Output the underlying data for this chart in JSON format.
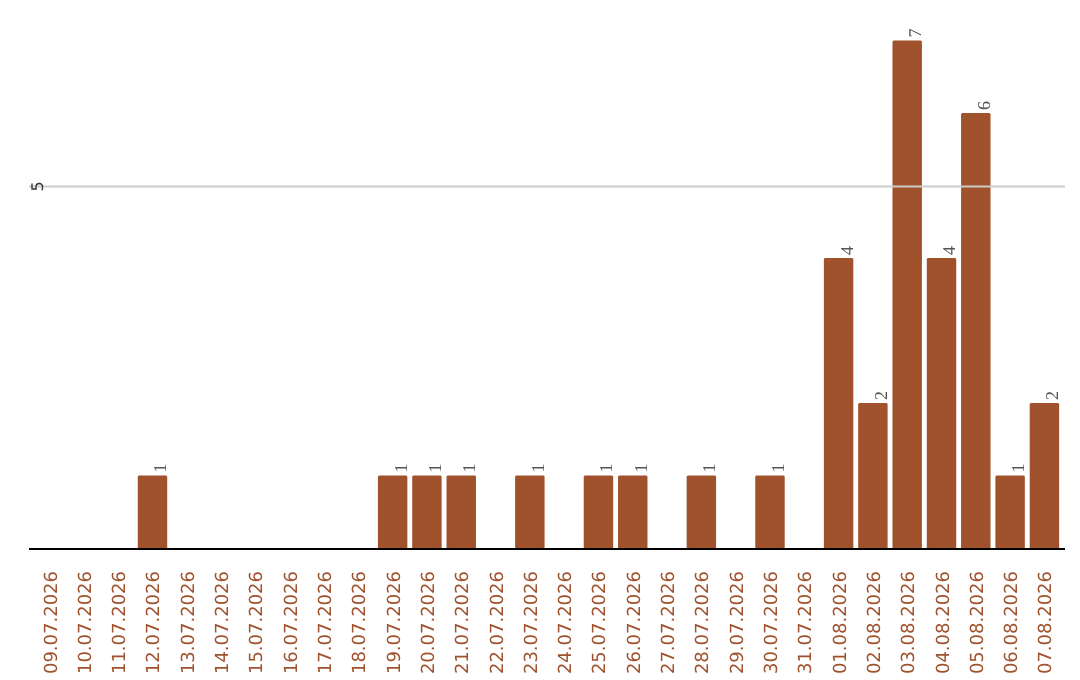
{
  "chart_data": {
    "type": "bar",
    "categories": [
      "09.07.2026",
      "10.07.2026",
      "11.07.2026",
      "12.07.2026",
      "13.07.2026",
      "14.07.2026",
      "15.07.2026",
      "16.07.2026",
      "17.07.2026",
      "18.07.2026",
      "19.07.2026",
      "20.07.2026",
      "21.07.2026",
      "22.07.2026",
      "23.07.2026",
      "24.07.2026",
      "25.07.2026",
      "26.07.2026",
      "27.07.2026",
      "28.07.2026",
      "29.07.2026",
      "30.07.2026",
      "31.07.2026",
      "01.08.2026",
      "02.08.2026",
      "03.08.2026",
      "04.08.2026",
      "05.08.2026",
      "06.08.2026",
      "07.08.2026"
    ],
    "values": [
      null,
      null,
      null,
      1,
      null,
      null,
      null,
      null,
      null,
      null,
      1,
      1,
      1,
      null,
      1,
      null,
      1,
      1,
      null,
      1,
      null,
      1,
      null,
      4,
      2,
      7,
      4,
      6,
      1,
      2
    ],
    "color": "#a0522d",
    "ref_lines": [
      {
        "axis": "y",
        "value": 5,
        "label": "5",
        "color": "#cccccc"
      }
    ],
    "data_labels": true
  }
}
